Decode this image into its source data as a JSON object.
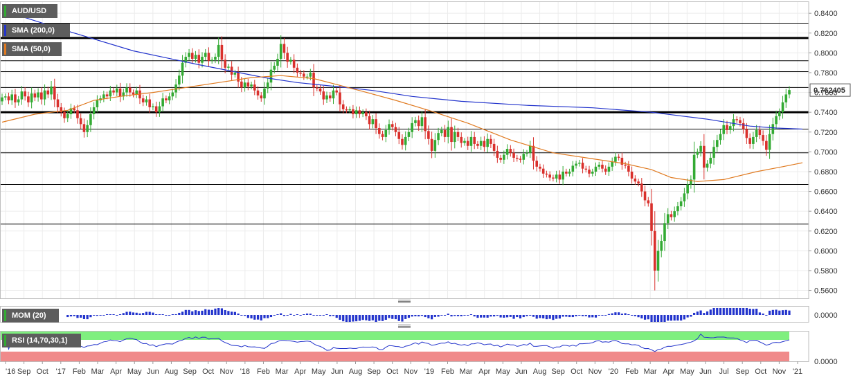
{
  "chart_data": {
    "type": "candlestick",
    "symbol": "AUD/USD",
    "timeframe": "weekly",
    "last_price": "0.762405",
    "ylim": [
      0.552,
      0.852
    ],
    "y_ticks": [
      "0.8400",
      "0.8200",
      "0.8000",
      "0.7800",
      "0.7600",
      "0.7400",
      "0.7200",
      "0.7000",
      "0.6800",
      "0.6600",
      "0.6400",
      "0.6200",
      "0.6000",
      "0.5800",
      "0.5600"
    ],
    "x_labels": [
      "'16",
      "Sep",
      "Oct",
      "'17",
      "Feb",
      "Mar",
      "Apr",
      "May",
      "Jun",
      "Aug",
      "Sep",
      "Oct",
      "Nov",
      "'18",
      "Feb",
      "Mar",
      "Apr",
      "May",
      "Jun",
      "Aug",
      "Sep",
      "Oct",
      "Nov",
      "'19",
      "Feb",
      "Mar",
      "Apr",
      "May",
      "Jun",
      "Aug",
      "Sep",
      "Oct",
      "Nov",
      "'20",
      "Feb",
      "Mar",
      "Apr",
      "May",
      "Jun",
      "Jul",
      "Sep",
      "Oct",
      "Nov",
      "'21"
    ],
    "horizontal_levels": [
      {
        "value": 0.83,
        "weight": "thin"
      },
      {
        "value": 0.815,
        "weight": "thick"
      },
      {
        "value": 0.792,
        "weight": "thin"
      },
      {
        "value": 0.781,
        "weight": "thin"
      },
      {
        "value": 0.765,
        "weight": "thin"
      },
      {
        "value": 0.74,
        "weight": "thick"
      },
      {
        "value": 0.723,
        "weight": "thin"
      },
      {
        "value": 0.699,
        "weight": "thin"
      },
      {
        "value": 0.667,
        "weight": "thin"
      },
      {
        "value": 0.627,
        "weight": "thin"
      }
    ],
    "series": [
      {
        "name": "AUD/USD",
        "kind": "candles",
        "up_color": "#33aa33",
        "down_color": "#d9302c",
        "closes": [
          0.755,
          0.756,
          0.752,
          0.758,
          0.75,
          0.753,
          0.761,
          0.756,
          0.75,
          0.759,
          0.755,
          0.76,
          0.753,
          0.762,
          0.758,
          0.766,
          0.753,
          0.745,
          0.74,
          0.734,
          0.738,
          0.744,
          0.742,
          0.734,
          0.728,
          0.72,
          0.727,
          0.738,
          0.745,
          0.752,
          0.754,
          0.758,
          0.756,
          0.762,
          0.76,
          0.764,
          0.756,
          0.76,
          0.765,
          0.76,
          0.758,
          0.762,
          0.754,
          0.75,
          0.753,
          0.745,
          0.746,
          0.74,
          0.746,
          0.754,
          0.752,
          0.756,
          0.76,
          0.768,
          0.777,
          0.79,
          0.796,
          0.8,
          0.794,
          0.798,
          0.79,
          0.796,
          0.8,
          0.792,
          0.793,
          0.796,
          0.808,
          0.793,
          0.785,
          0.786,
          0.778,
          0.78,
          0.771,
          0.765,
          0.77,
          0.766,
          0.768,
          0.762,
          0.757,
          0.754,
          0.764,
          0.77,
          0.783,
          0.787,
          0.794,
          0.809,
          0.8,
          0.791,
          0.793,
          0.785,
          0.78,
          0.779,
          0.776,
          0.776,
          0.78,
          0.765,
          0.764,
          0.761,
          0.753,
          0.757,
          0.754,
          0.762,
          0.76,
          0.748,
          0.743,
          0.742,
          0.743,
          0.738,
          0.742,
          0.738,
          0.74,
          0.736,
          0.728,
          0.733,
          0.724,
          0.718,
          0.715,
          0.722,
          0.728,
          0.725,
          0.72,
          0.713,
          0.707,
          0.715,
          0.72,
          0.729,
          0.732,
          0.726,
          0.735,
          0.721,
          0.713,
          0.701,
          0.712,
          0.719,
          0.722,
          0.715,
          0.725,
          0.71,
          0.72,
          0.715,
          0.709,
          0.711,
          0.706,
          0.715,
          0.708,
          0.706,
          0.711,
          0.705,
          0.713,
          0.708,
          0.701,
          0.694,
          0.692,
          0.697,
          0.703,
          0.699,
          0.694,
          0.693,
          0.692,
          0.698,
          0.699,
          0.706,
          0.691,
          0.685,
          0.683,
          0.678,
          0.677,
          0.674,
          0.673,
          0.677,
          0.672,
          0.68,
          0.678,
          0.68,
          0.686,
          0.688,
          0.689,
          0.683,
          0.682,
          0.678,
          0.68,
          0.685,
          0.687,
          0.683,
          0.68,
          0.685,
          0.69,
          0.695,
          0.694,
          0.687,
          0.686,
          0.68,
          0.673,
          0.67,
          0.668,
          0.66,
          0.651,
          0.648,
          0.62,
          0.58,
          0.6,
          0.61,
          0.628,
          0.637,
          0.634,
          0.64,
          0.645,
          0.65,
          0.658,
          0.667,
          0.672,
          0.697,
          0.7,
          0.706,
          0.684,
          0.688,
          0.694,
          0.705,
          0.712,
          0.718,
          0.727,
          0.722,
          0.726,
          0.733,
          0.732,
          0.729,
          0.723,
          0.714,
          0.708,
          0.715,
          0.722,
          0.717,
          0.711,
          0.702,
          0.718,
          0.728,
          0.736,
          0.74,
          0.75,
          0.758,
          0.7624
        ]
      },
      {
        "name": "SMA (200,0)",
        "kind": "line",
        "color": "#2233cc",
        "points": [
          [
            0,
            0.843
          ],
          [
            20,
            0.822
          ],
          [
            40,
            0.802
          ],
          [
            60,
            0.788
          ],
          [
            80,
            0.775
          ],
          [
            90,
            0.77
          ],
          [
            102,
            0.766
          ],
          [
            113,
            0.762
          ],
          [
            125,
            0.756
          ],
          [
            140,
            0.751
          ],
          [
            160,
            0.747
          ],
          [
            180,
            0.7445
          ],
          [
            198,
            0.74
          ],
          [
            215,
            0.733
          ],
          [
            228,
            0.726
          ],
          [
            236,
            0.724
          ],
          [
            244,
            0.723
          ]
        ]
      },
      {
        "name": "SMA (50,0)",
        "kind": "line",
        "color": "#e07a20",
        "points": [
          [
            0,
            0.73
          ],
          [
            10,
            0.738
          ],
          [
            20,
            0.742
          ],
          [
            28,
            0.752
          ],
          [
            36,
            0.756
          ],
          [
            46,
            0.76
          ],
          [
            58,
            0.766
          ],
          [
            66,
            0.77
          ],
          [
            76,
            0.775
          ],
          [
            85,
            0.777
          ],
          [
            95,
            0.774
          ],
          [
            102,
            0.768
          ],
          [
            110,
            0.761
          ],
          [
            120,
            0.752
          ],
          [
            130,
            0.742
          ],
          [
            142,
            0.729
          ],
          [
            155,
            0.712
          ],
          [
            168,
            0.699
          ],
          [
            180,
            0.693
          ],
          [
            190,
            0.688
          ],
          [
            198,
            0.682
          ],
          [
            204,
            0.674
          ],
          [
            212,
            0.67
          ],
          [
            220,
            0.672
          ],
          [
            230,
            0.68
          ],
          [
            238,
            0.685
          ],
          [
            244,
            0.689
          ]
        ]
      }
    ]
  },
  "legend": {
    "symbol": "AUD/USD",
    "symbol_color": "#33aa33",
    "sma200": "SMA (200,0)",
    "sma200_color": "#2233cc",
    "sma50": "SMA (50,0)",
    "sma50_color": "#e07a20"
  },
  "price_tag": "0.762405",
  "momentum": {
    "label": "MOM (20)",
    "label_swatch": "#33aa33",
    "tick": "0.0000",
    "color": "#2233cc"
  },
  "rsi": {
    "label": "RSI (14,70,30,1)",
    "label_swatch": "#33aa33",
    "tick": "0.0000",
    "line_color": "#2233cc",
    "overbought_color": "#7fef7f",
    "oversold_color": "#f08a8a"
  }
}
